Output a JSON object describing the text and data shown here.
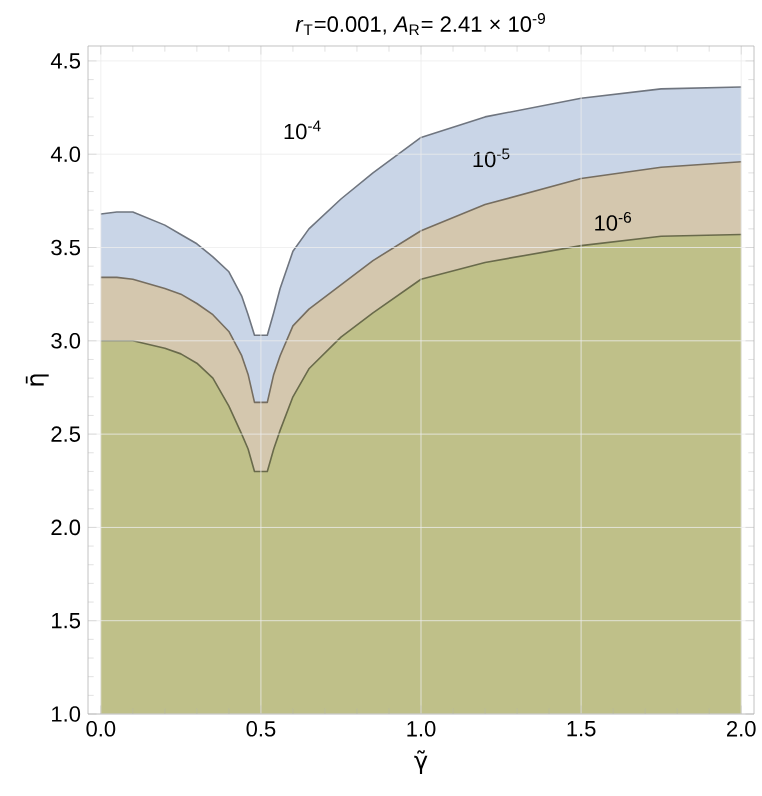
{
  "chart_data": {
    "type": "area",
    "title": "*r*$_{T}$=0.001, *A*$_{R}$= 2.41 × 10$^{-9}$",
    "xlabel": "γ̃",
    "ylabel": "η̄",
    "xlim": [
      -0.04,
      2.04
    ],
    "ylim": [
      1.0,
      4.58
    ],
    "xticks": [
      {
        "value": 0,
        "label": "0.0"
      },
      {
        "value": 0.5,
        "label": "0.5"
      },
      {
        "value": 1,
        "label": "1.0"
      },
      {
        "value": 1.5,
        "label": "1.5"
      },
      {
        "value": 2,
        "label": "2.0"
      }
    ],
    "yticks": [
      {
        "value": 1,
        "label": "1.0"
      },
      {
        "value": 1.5,
        "label": "1.5"
      },
      {
        "value": 2,
        "label": "2.0"
      },
      {
        "value": 2.5,
        "label": "2.5"
      },
      {
        "value": 3,
        "label": "3.0"
      },
      {
        "value": 3.5,
        "label": "3.5"
      },
      {
        "value": 4,
        "label": "4.0"
      },
      {
        "value": 4.5,
        "label": "4.5"
      }
    ],
    "grid": true,
    "series": [
      {
        "color": "#c9d5e7",
        "x": [
          0,
          0.05,
          0.1,
          0.2,
          0.25,
          0.3,
          0.35,
          0.4,
          0.44,
          0.46,
          0.48,
          0.52,
          0.54,
          0.56,
          0.6,
          0.65,
          0.75,
          0.85,
          1.0,
          1.2,
          1.5,
          1.75,
          2.0
        ],
        "values": [
          3.68,
          3.69,
          3.69,
          3.62,
          3.57,
          3.52,
          3.45,
          3.37,
          3.24,
          3.14,
          3.03,
          3.03,
          3.15,
          3.28,
          3.48,
          3.6,
          3.76,
          3.9,
          4.09,
          4.2,
          4.3,
          4.35,
          4.36
        ]
      },
      {
        "color": "#d4c7ae",
        "x": [
          0,
          0.05,
          0.1,
          0.2,
          0.25,
          0.3,
          0.35,
          0.4,
          0.44,
          0.46,
          0.48,
          0.52,
          0.54,
          0.56,
          0.6,
          0.65,
          0.75,
          0.85,
          1.0,
          1.2,
          1.5,
          1.75,
          2.0
        ],
        "values": [
          3.34,
          3.34,
          3.33,
          3.28,
          3.25,
          3.2,
          3.14,
          3.05,
          2.92,
          2.82,
          2.67,
          2.67,
          2.82,
          2.92,
          3.08,
          3.17,
          3.3,
          3.43,
          3.59,
          3.73,
          3.87,
          3.93,
          3.96
        ]
      },
      {
        "color": "#bfc089",
        "x": [
          0,
          0.05,
          0.1,
          0.2,
          0.25,
          0.3,
          0.35,
          0.4,
          0.44,
          0.46,
          0.48,
          0.52,
          0.54,
          0.56,
          0.6,
          0.65,
          0.75,
          0.85,
          1.0,
          1.2,
          1.5,
          1.75,
          2.0
        ],
        "values": [
          3.0,
          3.0,
          3.0,
          2.96,
          2.93,
          2.88,
          2.8,
          2.65,
          2.5,
          2.42,
          2.3,
          2.3,
          2.42,
          2.52,
          2.7,
          2.85,
          3.02,
          3.15,
          3.33,
          3.42,
          3.51,
          3.56,
          3.57
        ]
      }
    ],
    "annotations": [
      "10$^{-4}$",
      "10$^{-5}$",
      "10$^{-6}$"
    ]
  }
}
